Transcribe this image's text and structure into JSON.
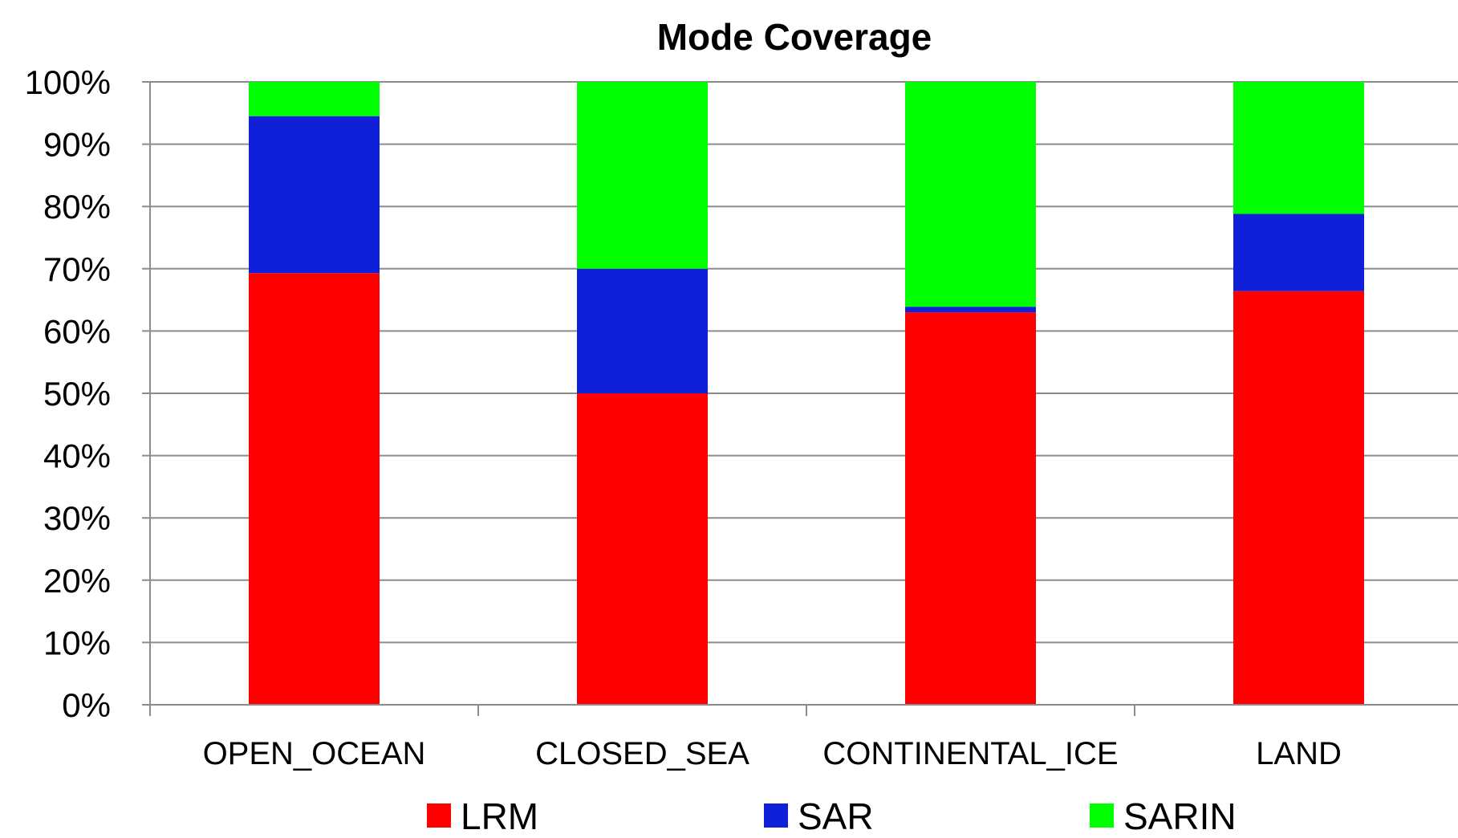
{
  "chart_data": {
    "type": "bar",
    "stacked": true,
    "title": "Mode Coverage",
    "xlabel": "",
    "ylabel": "",
    "ylim": [
      0,
      100
    ],
    "y_ticks": [
      "0%",
      "10%",
      "20%",
      "30%",
      "40%",
      "50%",
      "60%",
      "70%",
      "80%",
      "90%",
      "100%"
    ],
    "categories": [
      "OPEN_OCEAN",
      "CLOSED_SEA",
      "CONTINENTAL_ICE",
      "LAND"
    ],
    "series": [
      {
        "name": "LRM",
        "color": "#ff0000",
        "values": [
          69.3,
          50.0,
          63.0,
          66.4
        ]
      },
      {
        "name": "SAR",
        "color": "#1020d8",
        "values": [
          25.2,
          20.0,
          0.9,
          12.4
        ]
      },
      {
        "name": "SARIN",
        "color": "#00ff00",
        "values": [
          5.5,
          30.0,
          36.1,
          21.2
        ]
      }
    ],
    "grid": true,
    "legend": "bottom"
  }
}
